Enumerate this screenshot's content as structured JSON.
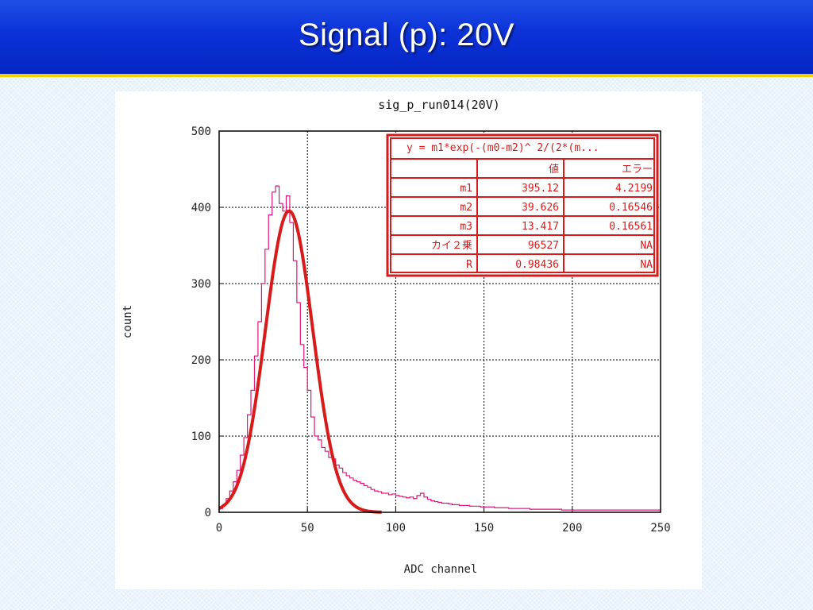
{
  "slide": {
    "title": "Signal (p):  20V"
  },
  "chart_data": {
    "type": "line",
    "title": "sig_p_run014(20V)",
    "xlabel": "ADC channel",
    "ylabel": "count",
    "xlim": [
      0,
      250
    ],
    "ylim": [
      0,
      500
    ],
    "x_ticks": [
      0,
      50,
      100,
      150,
      200,
      250
    ],
    "y_ticks": [
      0,
      100,
      200,
      300,
      400,
      500
    ],
    "grid": true,
    "series": [
      {
        "kind": "histogram",
        "color": "#e0157a",
        "x": [
          1,
          3,
          5,
          7,
          9,
          11,
          13,
          15,
          17,
          19,
          21,
          23,
          25,
          27,
          29,
          31,
          33,
          35,
          37,
          39,
          41,
          43,
          45,
          47,
          49,
          51,
          53,
          55,
          57,
          59,
          61,
          63,
          65,
          67,
          69,
          71,
          73,
          75,
          77,
          79,
          81,
          83,
          85,
          87,
          89,
          91,
          93,
          95,
          97,
          99,
          101,
          103,
          105,
          107,
          109,
          111,
          113,
          115,
          117,
          119,
          121,
          123,
          125,
          127,
          129,
          131,
          133,
          135,
          137,
          139,
          141,
          143,
          145,
          147,
          149,
          151,
          153,
          155,
          157,
          159,
          161,
          163,
          165,
          167,
          169,
          171,
          173,
          175,
          177,
          179,
          181,
          183,
          185,
          187,
          189,
          191,
          193,
          195,
          197,
          199,
          201,
          203,
          205,
          207,
          209,
          211,
          213,
          215,
          217,
          219,
          221,
          223,
          225,
          227,
          229,
          231,
          233,
          235,
          237,
          239,
          241,
          243,
          245,
          247,
          249
        ],
        "y": [
          5,
          10,
          18,
          28,
          40,
          55,
          75,
          98,
          128,
          160,
          205,
          250,
          300,
          345,
          390,
          420,
          428,
          405,
          395,
          415,
          380,
          330,
          275,
          220,
          190,
          160,
          125,
          100,
          95,
          85,
          80,
          72,
          70,
          62,
          58,
          52,
          48,
          45,
          42,
          40,
          38,
          35,
          33,
          30,
          28,
          27,
          25,
          25,
          23,
          24,
          22,
          21,
          20,
          19,
          20,
          18,
          22,
          25,
          20,
          17,
          15,
          14,
          13,
          12,
          12,
          11,
          10,
          10,
          9,
          9,
          9,
          8,
          8,
          8,
          7,
          7,
          7,
          7,
          6,
          6,
          6,
          6,
          5,
          5,
          5,
          5,
          5,
          5,
          4,
          4,
          4,
          4,
          4,
          4,
          4,
          4,
          4,
          3,
          3,
          3,
          3,
          3,
          3,
          3,
          3,
          3,
          3,
          3,
          3,
          3,
          3,
          3,
          3,
          3,
          3,
          3,
          3,
          3,
          3,
          3,
          3,
          3,
          3,
          3,
          3
        ]
      },
      {
        "kind": "fit",
        "color": "#d81a1a",
        "formula": "m1*exp(-(m0-m2)^2/(2*m3^2))",
        "params": {
          "m1": 395.12,
          "m2": 39.626,
          "m3": 13.417
        },
        "x_range": [
          0,
          92
        ]
      }
    ],
    "fit_table": {
      "formula_label": "y = m1*exp(-(m0-m2)^ 2/(2*(m...",
      "headers": [
        "",
        "値",
        "エラー"
      ],
      "rows": [
        [
          "m1",
          "395.12",
          "4.2199"
        ],
        [
          "m2",
          "39.626",
          "0.16546"
        ],
        [
          "m3",
          "13.417",
          "0.16561"
        ],
        [
          "カイ２乗",
          "96527",
          "NA"
        ],
        [
          "R",
          "0.98436",
          "NA"
        ]
      ]
    }
  }
}
